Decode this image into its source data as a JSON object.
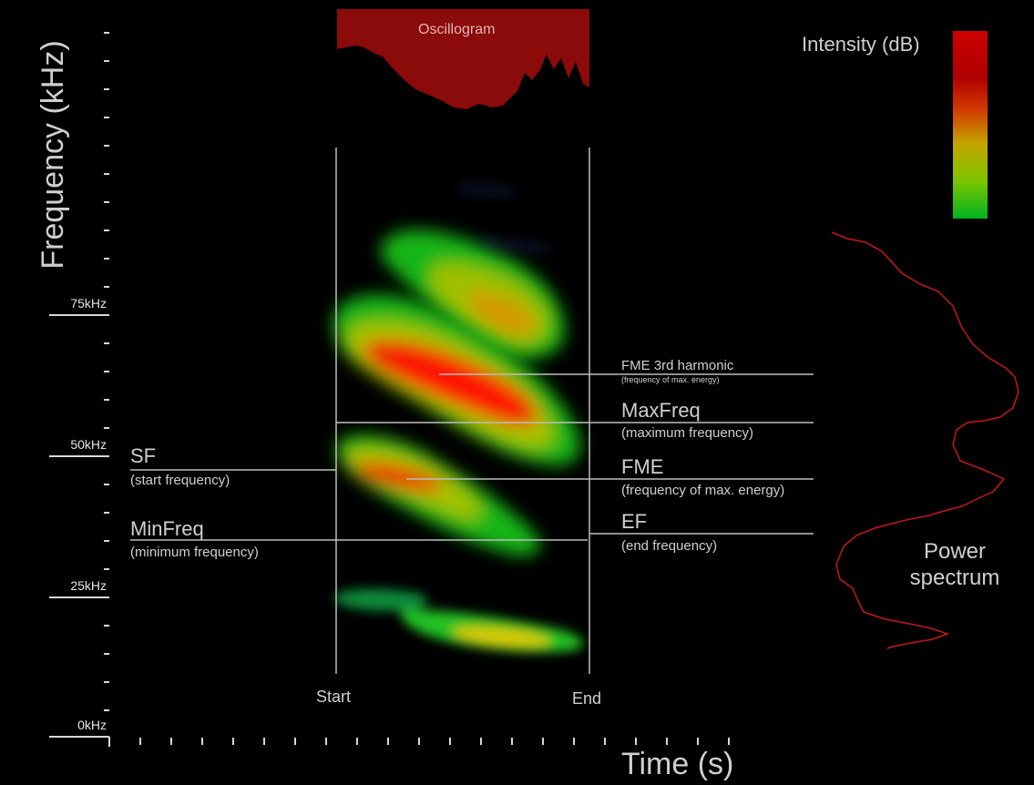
{
  "axes": {
    "y_title": "Frequency (kHz)",
    "x_title": "Time (s)",
    "y_ticks": [
      "75kHz",
      "50kHz",
      "25kHz",
      "0kHz"
    ],
    "x_markers": {
      "start": "Start",
      "end": "End"
    }
  },
  "oscillogram": {
    "title": "Oscillogram",
    "color": "#8b0a0a"
  },
  "legend": {
    "title": "Intensity (dB)",
    "colors": [
      "#cc0000",
      "#d12a00",
      "#c4a000",
      "#7fc400",
      "#00b21e"
    ]
  },
  "power_spectrum": {
    "title_line1": "Power",
    "title_line2": "spectrum",
    "color": "#c41818"
  },
  "annotations": {
    "sf": {
      "name": "SF",
      "desc": "(start frequency)"
    },
    "minfreq": {
      "name": "MinFreq",
      "desc": "(minimum frequency)"
    },
    "fme3": {
      "name": "FME 3rd harmonic",
      "desc": "(frequency of max. energy)"
    },
    "maxfreq": {
      "name": "MaxFreq",
      "desc": "(maximum frequency)"
    },
    "fme": {
      "name": "FME",
      "desc": "(frequency of max. energy)"
    },
    "ef": {
      "name": "EF",
      "desc": "(end frequency)"
    }
  }
}
